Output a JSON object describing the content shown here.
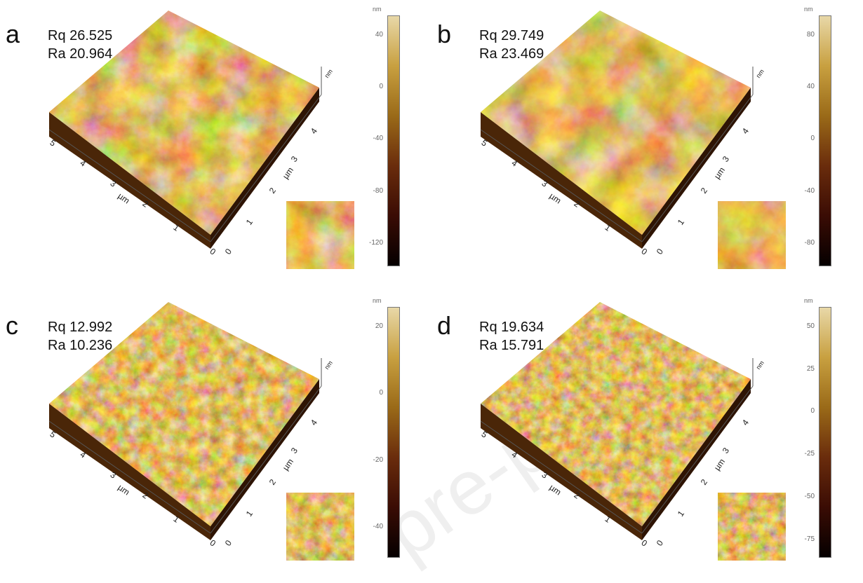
{
  "panels": [
    {
      "label": "a",
      "rq": "Rq 26.525",
      "ra": "Ra 20.964",
      "unit": "nm",
      "cbar_ticks": [
        "40",
        "0",
        "-40",
        "-80",
        "-120"
      ],
      "axis_unit": "µm",
      "axis_ticks": [
        "0",
        "1",
        "2",
        "3",
        "4",
        "5"
      ],
      "scale": 0.025
    },
    {
      "label": "b",
      "rq": "Rq 29.749",
      "ra": "Ra 23.469",
      "unit": "nm",
      "cbar_ticks": [
        "80",
        "40",
        "0",
        "-40",
        "-80"
      ],
      "axis_unit": "µm",
      "axis_ticks": [
        "0",
        "1",
        "2",
        "3",
        "4",
        "5"
      ],
      "scale": 0.02
    },
    {
      "label": "c",
      "rq": "Rq 12.992",
      "ra": "Ra 10.236",
      "unit": "nm",
      "cbar_ticks": [
        "20",
        "0",
        "-20",
        "-40"
      ],
      "axis_unit": "µm",
      "axis_ticks": [
        "0",
        "1",
        "2",
        "3",
        "4",
        "5"
      ],
      "scale": 0.06
    },
    {
      "label": "d",
      "rq": "Rq 19.634",
      "ra": "Ra 15.791",
      "unit": "nm",
      "cbar_ticks": [
        "50",
        "25",
        "0",
        "-25",
        "-50",
        "-75"
      ],
      "axis_unit": "µm",
      "axis_ticks": [
        "0",
        "1",
        "2",
        "3",
        "4",
        "5"
      ],
      "scale": 0.07
    }
  ],
  "watermark": "pre-proof"
}
